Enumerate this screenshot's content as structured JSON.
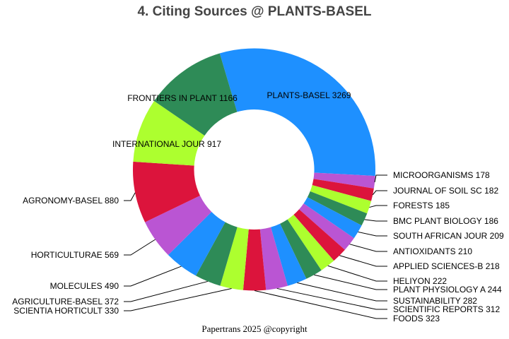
{
  "chart_data": {
    "type": "pie",
    "donut": true,
    "title": "4. Citing Sources @ PLANTS-BASEL",
    "direction": "clockwise",
    "colors": [
      "#1E90FF",
      "#BA55D3",
      "#DC143C",
      "#ADFF2F",
      "#2E8B57"
    ],
    "slices": [
      {
        "label": "PLANTS-BASEL",
        "value": 3269
      },
      {
        "label": "MICROORGANISMS",
        "value": 178
      },
      {
        "label": "JOURNAL OF SOIL SC",
        "value": 182
      },
      {
        "label": "FORESTS",
        "value": 185
      },
      {
        "label": "BMC PLANT BIOLOGY",
        "value": 186
      },
      {
        "label": "SOUTH AFRICAN JOUR",
        "value": 209
      },
      {
        "label": "ANTIOXIDANTS",
        "value": 210
      },
      {
        "label": "APPLIED SCIENCES-B",
        "value": 218
      },
      {
        "label": "HELIYON",
        "value": 222
      },
      {
        "label": "PLANT PHYSIOLOGY A",
        "value": 244
      },
      {
        "label": "SUSTAINABILITY",
        "value": 282
      },
      {
        "label": "SCIENTIFIC REPORTS",
        "value": 312
      },
      {
        "label": "FOODS",
        "value": 323
      },
      {
        "label": "SCIENTIA HORTICULT",
        "value": 330
      },
      {
        "label": "AGRICULTURE-BASEL",
        "value": 372
      },
      {
        "label": "MOLECULES",
        "value": 490
      },
      {
        "label": "HORTICULTURAE",
        "value": 569
      },
      {
        "label": "AGRONOMY-BASEL",
        "value": 880
      },
      {
        "label": "INTERNATIONAL JOUR",
        "value": 917
      },
      {
        "label": "FRONTIERS IN PLANT",
        "value": 1166
      }
    ]
  },
  "footer": "Papertrans 2025 @copyright"
}
